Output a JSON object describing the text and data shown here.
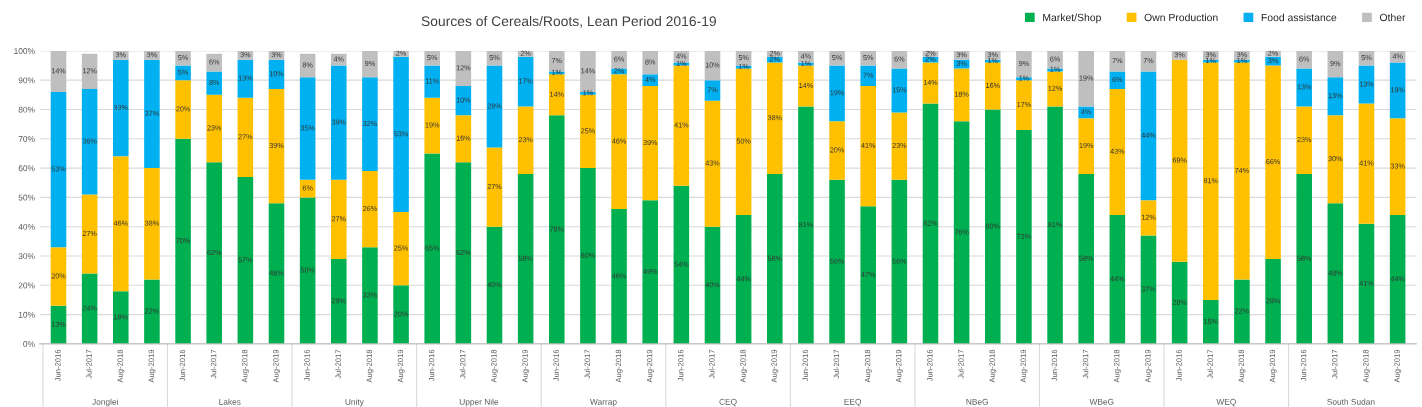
{
  "chart_data": {
    "type": "bar",
    "stacked": true,
    "title": "Sources of Cereals/Roots, Lean Period 2016-19",
    "categories": [
      "Jun-2016",
      "Jul-2017",
      "Aug-2018",
      "Aug-2019",
      "Jun-2016",
      "Jul-2017",
      "Aug-2018",
      "Aug-2019",
      "Jun-2016",
      "Jul-2017",
      "Aug-2018",
      "Aug-2019",
      "Jun-2016",
      "Jul-2017",
      "Aug-2018",
      "Aug-2019",
      "Jun-2016",
      "Jul-2017",
      "Aug-2018",
      "Aug-2019",
      "Jun-2016",
      "Jul-2017",
      "Aug-2018",
      "Aug-2019",
      "Jun-2016",
      "Jul-2017",
      "Aug-2018",
      "Aug-2019",
      "Jun-2016",
      "Jul-2017",
      "Aug-2018",
      "Aug-2019",
      "Jun-2016",
      "Jul-2017",
      "Aug-2018",
      "Aug-2019",
      "Jun-2016",
      "Jul-2017",
      "Aug-2018",
      "Aug-2019",
      "Jun-2016",
      "Jul-2017",
      "Aug-2018",
      "Aug-2019"
    ],
    "annotations": [
      "Jonglei",
      "Lakes",
      "Unity",
      "Upper Nile",
      "Warrap",
      "CEQ",
      "EEQ",
      "NBeG",
      "WBeG",
      "WEQ",
      "South Sudan"
    ],
    "series": [
      {
        "name": "Market/Shop",
        "color": "#00b050",
        "values": [
          13,
          24,
          18,
          22,
          70,
          62,
          57,
          48,
          50,
          29,
          33,
          20,
          65,
          62,
          40,
          58,
          78,
          60,
          46,
          49,
          54,
          40,
          44,
          58,
          81,
          56,
          47,
          56,
          82,
          76,
          80,
          73,
          81,
          58,
          44,
          37,
          28,
          15,
          22,
          29,
          58,
          48,
          41,
          44
        ],
        "value_labels": [
          "13%",
          "24%",
          "18%",
          "22%",
          "70%",
          "62%",
          "57%",
          "48%",
          "50%",
          "29%",
          "33%",
          "20%",
          "65%",
          "62%",
          "40%",
          "58%",
          "78%",
          "60%",
          "46%",
          "49%",
          "54%",
          "40%",
          "44%",
          "58%",
          "81%",
          "56%",
          "47%",
          "56%",
          "82%",
          "76%",
          "80%",
          "73%",
          "81%",
          "58%",
          "44%",
          "37%",
          "28%",
          "15%",
          "22%",
          "29%",
          "58%",
          "48%",
          "41%",
          "44%"
        ]
      },
      {
        "name": "Own Production",
        "color": "#ffc000",
        "values": [
          20,
          27,
          46,
          38,
          20,
          23,
          27,
          39,
          6,
          27,
          26,
          25,
          19,
          16,
          27,
          23,
          14,
          25,
          46,
          39,
          41,
          43,
          50,
          38,
          14,
          20,
          41,
          23,
          14,
          18,
          16,
          17,
          12,
          19,
          43,
          12,
          69,
          81,
          74,
          66,
          23,
          30,
          41,
          33
        ],
        "value_labels": [
          "20%",
          "27%",
          "46%",
          "38%",
          "20%",
          "23%",
          "27%",
          "39%",
          "6%",
          "27%",
          "26%",
          "25%",
          "19%",
          "16%",
          "27%",
          "23%",
          "14%",
          "25%",
          "46%",
          "39%",
          "41%",
          "43%",
          "50%",
          "38%",
          "14%",
          "20%",
          "41%",
          "23%",
          "14%",
          "18%",
          "16%",
          "17%",
          "12%",
          "19%",
          "43%",
          "12%",
          "69%",
          "81%",
          "74%",
          "66%",
          "23%",
          "30%",
          "41%",
          "33%"
        ]
      },
      {
        "name": "Food assistance",
        "color": "#00b0f0",
        "values": [
          53,
          36,
          33,
          37,
          5,
          8,
          13,
          10,
          35,
          39,
          32,
          53,
          11,
          10,
          28,
          17,
          1,
          1,
          2,
          4,
          1,
          7,
          1,
          2,
          1,
          19,
          7,
          15,
          2,
          3,
          1,
          1,
          1,
          4,
          6,
          44,
          null,
          1,
          1,
          3,
          13,
          13,
          13,
          19
        ],
        "value_labels": [
          "53%",
          "36%",
          "33%",
          "37%",
          "5%",
          "8%",
          "13%",
          "10%",
          "35%",
          "39%",
          "32%",
          "53%",
          "11%",
          "10%",
          "28%",
          "17%",
          "1%",
          "1%",
          "2%",
          "4%",
          "1%",
          "7%",
          "1%",
          "2%",
          "1%",
          "19%",
          "7%",
          "15%",
          "2%",
          "3%",
          "1%",
          "1%",
          "1%",
          "4%",
          "6%",
          "44%",
          null,
          "1%",
          "1%",
          "3%",
          "13%",
          "13%",
          "13%",
          "19%"
        ]
      },
      {
        "name": "Other",
        "color": "#bfbfbf",
        "values": [
          14,
          12,
          3,
          3,
          5,
          6,
          3,
          3,
          8,
          4,
          9,
          2,
          5,
          12,
          5,
          2,
          7,
          14,
          6,
          8,
          4,
          10,
          5,
          2,
          4,
          5,
          5,
          6,
          2,
          3,
          3,
          9,
          6,
          19,
          7,
          7,
          3,
          3,
          3,
          2,
          6,
          9,
          5,
          4
        ],
        "value_labels": [
          "14%",
          "12%",
          "3%",
          "3%",
          "5%",
          "6%",
          "3%",
          "3%",
          "8%",
          "4%",
          "9%",
          "2%",
          "5%",
          "12%",
          "5%",
          "2%",
          "7%",
          "14%",
          "6%",
          "8%",
          "4%",
          "10%",
          "5%",
          "2%",
          "4%",
          "5%",
          "5%",
          "6%",
          "2%",
          "3%",
          "3%",
          "9%",
          "6%",
          "19%",
          "7%",
          "7%",
          "3%",
          "3%",
          "3%",
          "2%",
          "6%",
          "9%",
          "5%",
          "4%"
        ]
      }
    ],
    "ylim": [
      0,
      100
    ],
    "yticks": [
      {
        "value": 0,
        "label": "0%"
      },
      {
        "value": 10,
        "label": "10%"
      },
      {
        "value": 20,
        "label": "20%"
      },
      {
        "value": 30,
        "label": "30%"
      },
      {
        "value": 40,
        "label": "40%"
      },
      {
        "value": 50,
        "label": "50%"
      },
      {
        "value": 60,
        "label": "60%"
      },
      {
        "value": 70,
        "label": "70%"
      },
      {
        "value": 80,
        "label": "80%"
      },
      {
        "value": 90,
        "label": "90%"
      },
      {
        "value": 100,
        "label": "100%"
      }
    ],
    "grid": "y",
    "legend": "top right"
  }
}
